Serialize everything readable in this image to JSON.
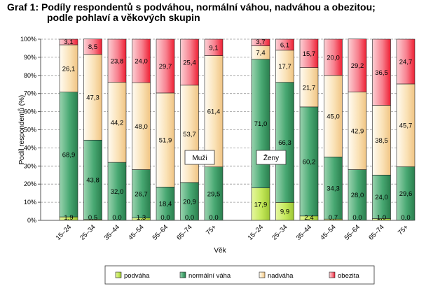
{
  "title_line1": "Graf 1: Podíly respondentů s podváhou, normální váhou, nadváhou a obezitou;",
  "title_line2": "podle pohlaví a věkových skupin",
  "chart_data": {
    "type": "bar",
    "stacked": "percent",
    "ylabel": "Podíl respondentů (%)",
    "xlabel": "Věk",
    "ylim": [
      0,
      100
    ],
    "yticks": [
      "0%",
      "10%",
      "20%",
      "30%",
      "40%",
      "50%",
      "60%",
      "70%",
      "80%",
      "90%",
      "100%"
    ],
    "grid": true,
    "legend": "bottom",
    "colors": {
      "podvaha": "#b8e04a",
      "normalni": "#3a9b62",
      "nadvaha": "#f6d9a8",
      "obezita": "#f0243a"
    },
    "series_names": [
      "podváha",
      "normální váha",
      "nadváha",
      "obezita"
    ],
    "groups": [
      {
        "label": "Muži",
        "categories": [
          "15–24",
          "25–34",
          "35–44",
          "45–54",
          "55–64",
          "65–74",
          "75+"
        ],
        "series": [
          {
            "name": "podváha",
            "values": [
              1.9,
              0.5,
              0.0,
              1.3,
              0.0,
              0.0,
              0.0
            ],
            "labels": [
              "1,9",
              "0,5",
              "0,0",
              "1,3",
              "0,0",
              "0,0",
              "0,0"
            ]
          },
          {
            "name": "normální váha",
            "values": [
              68.9,
              43.8,
              32.0,
              26.7,
              18.4,
              20.9,
              29.5
            ],
            "labels": [
              "68,9",
              "43,8",
              "32,0",
              "26,7",
              "18,4",
              "20,9",
              "29,5"
            ]
          },
          {
            "name": "nadváha",
            "values": [
              26.1,
              47.3,
              44.2,
              48.0,
              51.9,
              53.7,
              61.4
            ],
            "labels": [
              "26,1",
              "47,3",
              "44,2",
              "48,0",
              "51,9",
              "53,7",
              "61,4"
            ]
          },
          {
            "name": "obezita",
            "values": [
              3.1,
              8.5,
              23.8,
              24.0,
              29.7,
              25.4,
              9.1
            ],
            "labels": [
              "3,1",
              "8,5",
              "23,8",
              "24,0",
              "29,7",
              "25,4",
              "9,1"
            ]
          }
        ]
      },
      {
        "label": "Ženy",
        "categories": [
          "15–24",
          "25–34",
          "35–44",
          "45–54",
          "55–64",
          "65–74",
          "75+"
        ],
        "series": [
          {
            "name": "podváha",
            "values": [
              17.9,
              9.9,
              2.4,
              0.7,
              0.0,
              1.0,
              0.0
            ],
            "labels": [
              "17,9",
              "9,9",
              "2,4",
              "0,7",
              "0,0",
              "1,0",
              "0,0"
            ]
          },
          {
            "name": "normální váha",
            "values": [
              71.0,
              66.3,
              60.2,
              34.3,
              28.0,
              24.0,
              29.6
            ],
            "labels": [
              "71,0",
              "66,3",
              "60,2",
              "34,3",
              "28,0",
              "24,0",
              "29,6"
            ]
          },
          {
            "name": "nadváha",
            "values": [
              7.4,
              17.7,
              21.7,
              45.0,
              42.9,
              38.5,
              45.7
            ],
            "labels": [
              "7,4",
              "17,7",
              "21,7",
              "45,0",
              "42,9",
              "38,5",
              "45,7"
            ]
          },
          {
            "name": "obezita",
            "values": [
              3.7,
              6.1,
              15.7,
              20.0,
              29.2,
              36.5,
              24.7
            ],
            "labels": [
              "3,7",
              "6,1",
              "15,7",
              "20,0",
              "29,2",
              "36,5",
              "24,7"
            ]
          }
        ]
      }
    ]
  }
}
